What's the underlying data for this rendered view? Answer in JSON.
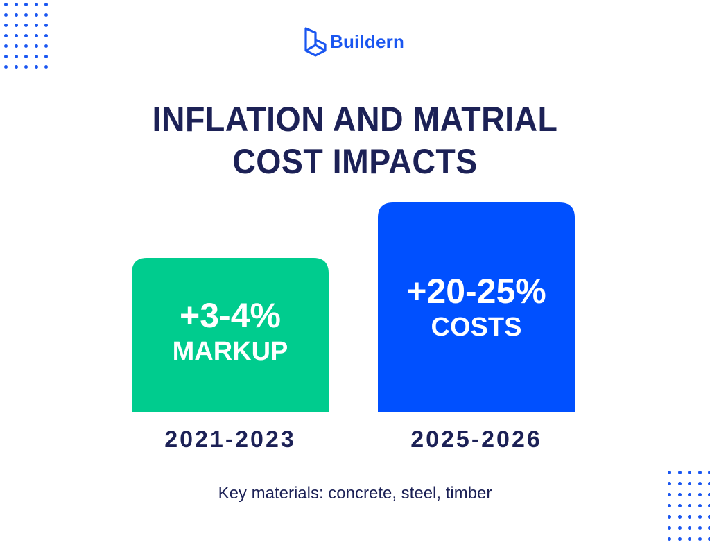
{
  "brand": {
    "name": "Buildern",
    "icon": "building-logo-icon",
    "color": "#1a56f0"
  },
  "title": {
    "line1": "INFLATION AND MATRIAL",
    "line2": "COST IMPACTS"
  },
  "chart_data": {
    "type": "bar",
    "title": "INFLATION AND MATRIAL COST IMPACTS",
    "categories": [
      "2021-2023",
      "2025-2026"
    ],
    "values": [
      3.5,
      22.5
    ],
    "ranges": [
      [
        3,
        4
      ],
      [
        20,
        25
      ]
    ],
    "data_labels": [
      "+3-4%",
      "+20-25%"
    ],
    "bar_labels": [
      "MARKUP",
      "COSTS"
    ],
    "colors": [
      "#00cc8e",
      "#0050ff"
    ],
    "grid": false,
    "legend": "none"
  },
  "footnote": "Key materials: concrete, steel, timber"
}
